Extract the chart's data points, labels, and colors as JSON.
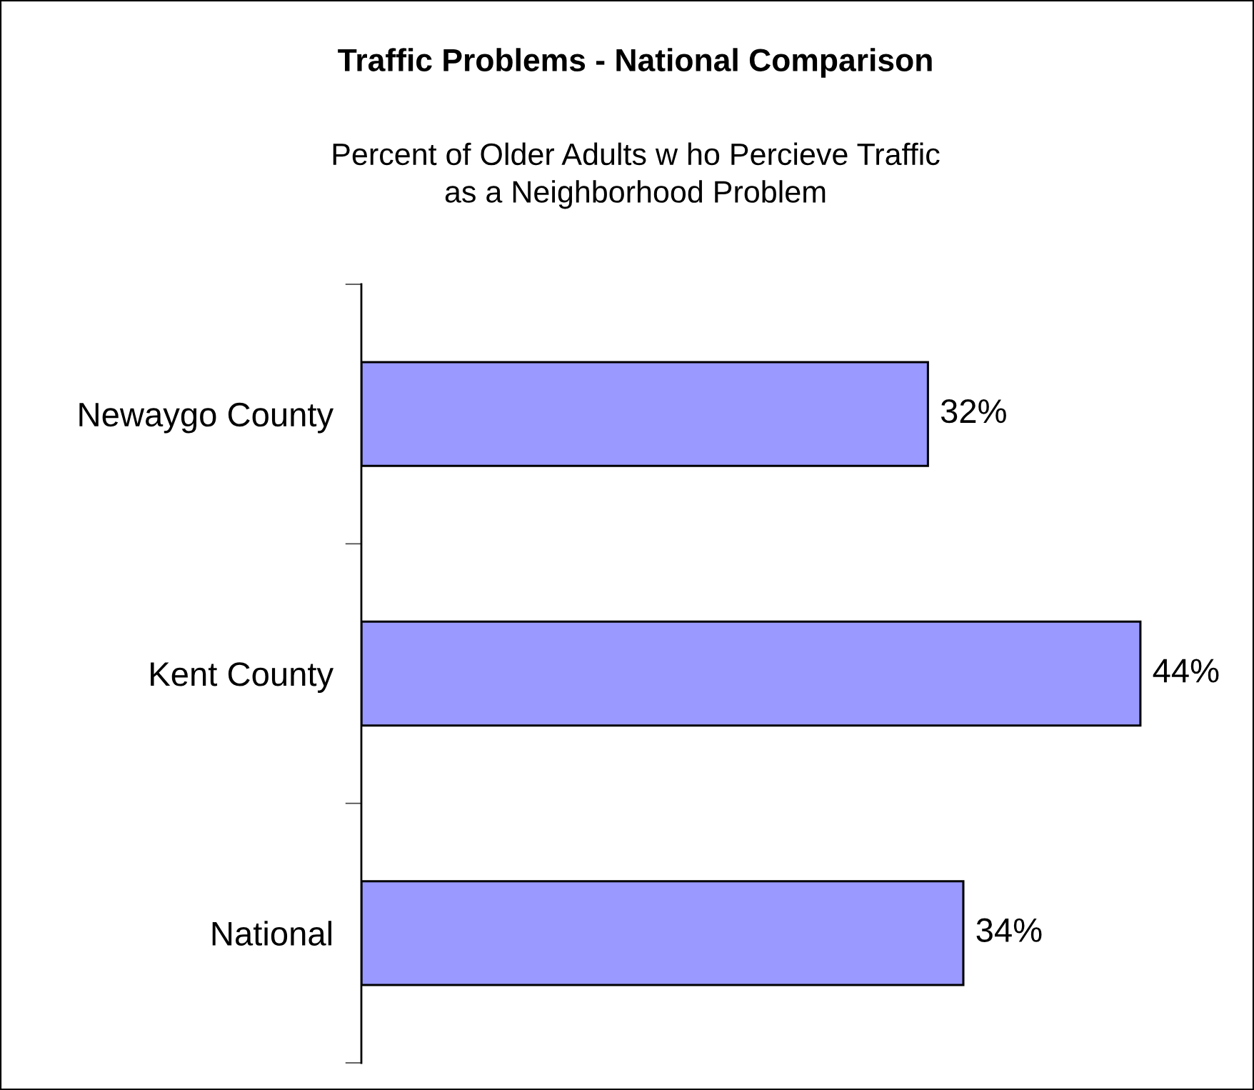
{
  "chart_data": {
    "type": "bar",
    "orientation": "horizontal",
    "title": "Traffic Problems - National Comparison",
    "subtitle": "Percent of Older Adults w ho Percieve Traffic\nas a Neighborhood Problem",
    "categories": [
      "Newaygo County",
      "Kent County",
      "National"
    ],
    "values": [
      32,
      44,
      34
    ],
    "value_labels": [
      "32%",
      "44%",
      "34%"
    ],
    "color": "#9999ff",
    "tick_labels": "y"
  }
}
